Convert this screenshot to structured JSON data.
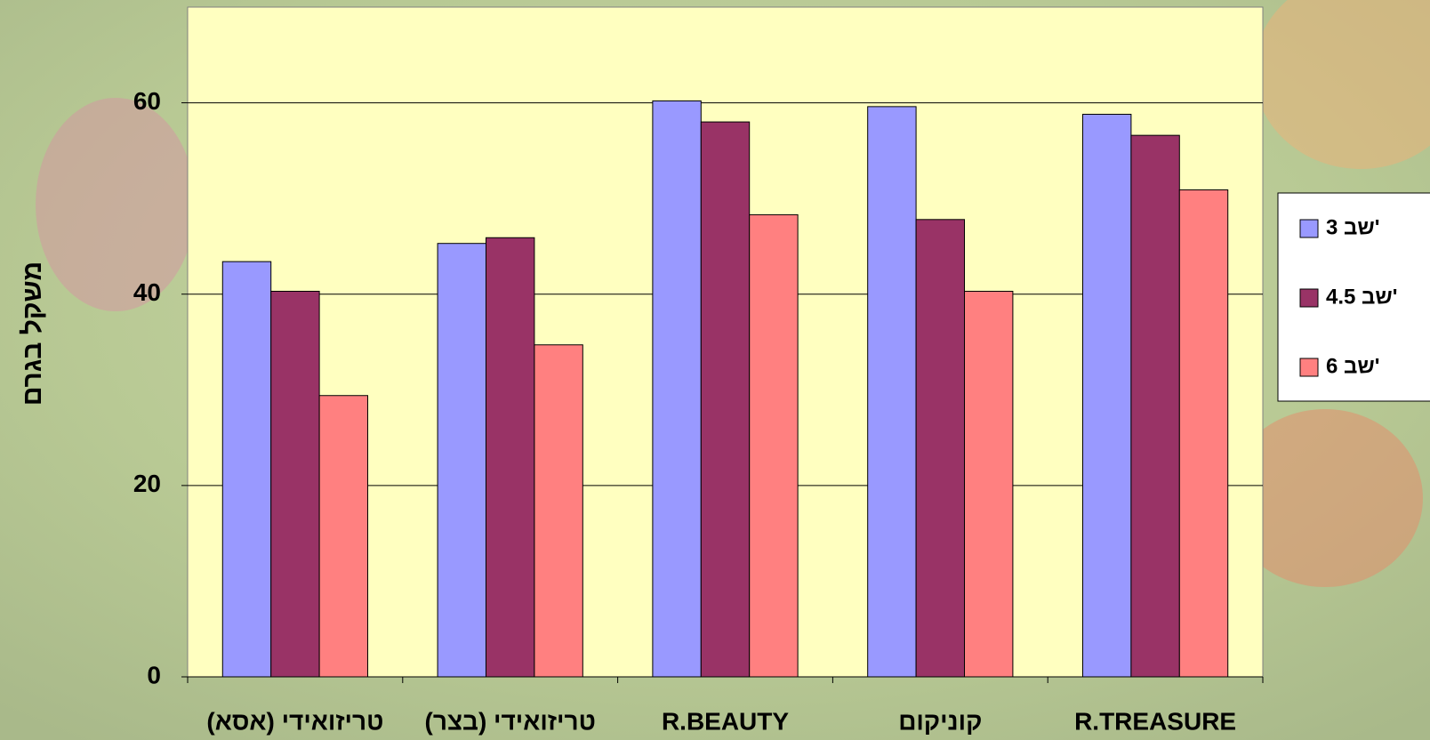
{
  "chart_data": {
    "type": "bar",
    "y_label": "משקל בגרם",
    "categories": [
      "טריזואידי (אסא)",
      "טריזואידי (בצר)",
      "R.BEAUTY",
      "קוניקום",
      "R.TREASURE"
    ],
    "series": [
      {
        "name": "'שב 3",
        "color": "#9999ff",
        "values": [
          43.4,
          45.3,
          60.2,
          59.6,
          58.8
        ]
      },
      {
        "name": "'שב 4.5",
        "color": "#993366",
        "values": [
          40.3,
          45.9,
          58.0,
          47.8,
          56.6
        ]
      },
      {
        "name": "'שב 6",
        "color": "#ff8080",
        "values": [
          29.4,
          34.7,
          48.3,
          40.3,
          50.9
        ]
      }
    ],
    "ylim": [
      0,
      70
    ],
    "yticks": [
      0,
      20,
      40,
      60
    ],
    "grid": true,
    "legend": "right"
  }
}
